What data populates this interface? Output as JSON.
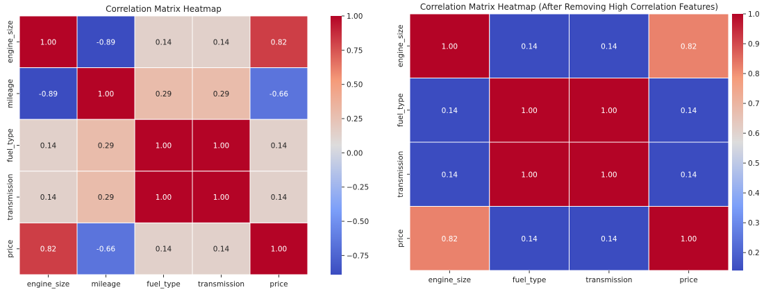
{
  "chart_data": [
    {
      "type": "heatmap",
      "title": "Correlation Matrix Heatmap",
      "xlabel": "",
      "ylabel": "",
      "x_categories": [
        "engine_size",
        "mileage",
        "fuel_type",
        "transmission",
        "price"
      ],
      "y_categories": [
        "engine_size",
        "mileage",
        "fuel_type",
        "transmission",
        "price"
      ],
      "values": [
        [
          1.0,
          -0.89,
          0.14,
          0.14,
          0.82
        ],
        [
          -0.89,
          1.0,
          0.29,
          0.29,
          -0.66
        ],
        [
          0.14,
          0.29,
          1.0,
          1.0,
          0.14
        ],
        [
          0.14,
          0.29,
          1.0,
          1.0,
          0.14
        ],
        [
          0.82,
          -0.66,
          0.14,
          0.14,
          1.0
        ]
      ],
      "colormap": "coolwarm",
      "color_range": [
        -0.89,
        1.0
      ],
      "colorbar_ticks": [
        "1.00",
        "0.75",
        "0.50",
        "0.25",
        "0.00",
        "−0.25",
        "−0.50",
        "−0.75"
      ],
      "colorbar_tick_values": [
        1.0,
        0.75,
        0.5,
        0.25,
        0.0,
        -0.25,
        -0.5,
        -0.75
      ],
      "annotation_format": "2dp"
    },
    {
      "type": "heatmap",
      "title": "Correlation Matrix Heatmap (After Removing High Correlation Features)",
      "xlabel": "",
      "ylabel": "",
      "x_categories": [
        "engine_size",
        "fuel_type",
        "transmission",
        "price"
      ],
      "y_categories": [
        "engine_size",
        "fuel_type",
        "transmission",
        "price"
      ],
      "values": [
        [
          1.0,
          0.14,
          0.14,
          0.82
        ],
        [
          0.14,
          1.0,
          1.0,
          0.14
        ],
        [
          0.14,
          1.0,
          1.0,
          0.14
        ],
        [
          0.82,
          0.14,
          0.14,
          1.0
        ]
      ],
      "colormap": "coolwarm",
      "color_range": [
        0.14,
        1.0
      ],
      "colorbar_ticks": [
        "1.0",
        "0.9",
        "0.8",
        "0.7",
        "0.6",
        "0.5",
        "0.4",
        "0.3",
        "0.2"
      ],
      "colorbar_tick_values": [
        1.0,
        0.9,
        0.8,
        0.7,
        0.6,
        0.5,
        0.4,
        0.3,
        0.2
      ],
      "annotation_format": "2dp"
    }
  ]
}
